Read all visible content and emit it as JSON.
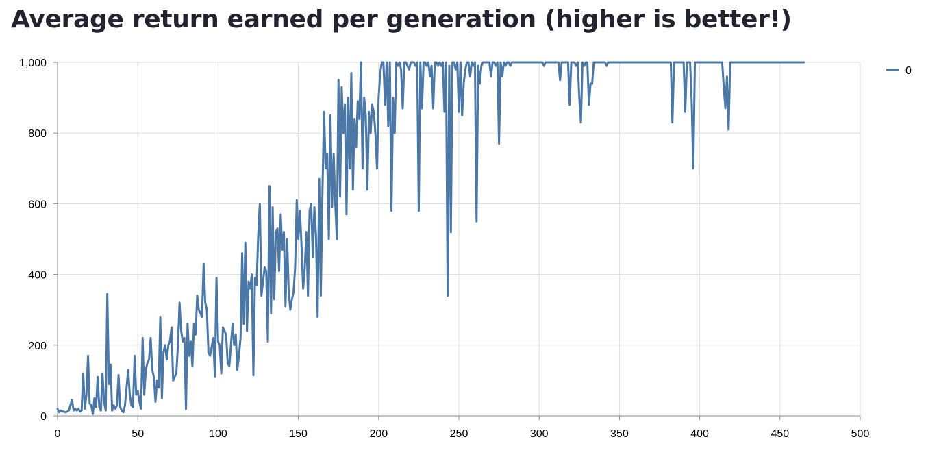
{
  "chart_data": {
    "type": "line",
    "title": "Average return earned per generation (higher is better!)",
    "xlabel": "",
    "ylabel": "",
    "xlim": [
      0,
      500
    ],
    "ylim": [
      0,
      1000
    ],
    "x_ticks": [
      0,
      50,
      100,
      150,
      200,
      250,
      300,
      350,
      400,
      450,
      500
    ],
    "x_tick_labels": [
      "0",
      "50",
      "100",
      "150",
      "200",
      "250",
      "300",
      "350",
      "400",
      "450",
      "500"
    ],
    "y_ticks": [
      0,
      200,
      400,
      600,
      800,
      1000
    ],
    "y_tick_labels": [
      "0",
      "200",
      "400",
      "600",
      "800",
      "1,000"
    ],
    "grid": true,
    "legend_placement": "top-right",
    "colors": {
      "series": "#4c78a8",
      "grid": "#dddddd",
      "axis": "#888888",
      "title": "#23232f"
    },
    "series": [
      {
        "name": "0",
        "x_start": 0,
        "x_step": 1,
        "values": [
          20,
          10,
          15,
          12,
          12,
          10,
          12,
          15,
          30,
          45,
          15,
          20,
          15,
          20,
          12,
          15,
          120,
          20,
          60,
          170,
          35,
          30,
          5,
          50,
          25,
          110,
          25,
          15,
          120,
          40,
          15,
          345,
          90,
          145,
          15,
          30,
          20,
          30,
          115,
          25,
          15,
          10,
          30,
          80,
          130,
          60,
          30,
          25,
          170,
          60,
          70,
          40,
          20,
          220,
          60,
          130,
          150,
          160,
          220,
          130,
          110,
          40,
          100,
          80,
          280,
          50,
          180,
          200,
          160,
          200,
          210,
          250,
          100,
          110,
          120,
          200,
          320,
          240,
          210,
          220,
          20,
          260,
          170,
          210,
          140,
          260,
          230,
          340,
          300,
          290,
          280,
          430,
          320,
          300,
          180,
          170,
          195,
          220,
          110,
          390,
          210,
          200,
          120,
          250,
          240,
          230,
          150,
          140,
          200,
          260,
          200,
          230,
          130,
          170,
          220,
          460,
          260,
          490,
          240,
          380,
          360,
          400,
          115,
          390,
          370,
          510,
          600,
          340,
          380,
          420,
          410,
          210,
          650,
          290,
          590,
          330,
          520,
          530,
          410,
          570,
          470,
          520,
          310,
          500,
          350,
          300,
          330,
          350,
          420,
          610,
          500,
          580,
          480,
          360,
          420,
          520,
          340,
          580,
          600,
          450,
          590,
          510,
          280,
          670,
          340,
          630,
          860,
          700,
          740,
          500,
          850,
          590,
          740,
          600,
          500,
          950,
          620,
          930,
          800,
          880,
          570,
          900,
          700,
          970,
          640,
          840,
          760,
          890,
          840,
          1000,
          700,
          900,
          850,
          640,
          860,
          800,
          880,
          860,
          800,
          700,
          900,
          970,
          1000,
          1000,
          880,
          1000,
          820,
          1000,
          580,
          900,
          800,
          1000,
          990,
          1000,
          980,
          870,
          1000,
          1000,
          990,
          980,
          1000,
          1000,
          1000,
          990,
          1000,
          580,
          1000,
          870,
          1000,
          1000,
          990,
          1000,
          960,
          990,
          870,
          1000,
          1000,
          990,
          1000,
          990,
          1000,
          860,
          1000,
          340,
          990,
          520,
          1000,
          1000,
          980,
          1000,
          860,
          1000,
          850,
          940,
          980,
          1000,
          1000,
          960,
          1000,
          990,
          1000,
          550,
          990,
          940,
          990,
          1000,
          1000,
          1000,
          1000,
          1000,
          960,
          1000,
          1000,
          990,
          1000,
          770,
          1000,
          960,
          1000,
          990,
          1000,
          1000,
          990,
          1000,
          1000,
          1000,
          1000,
          1000,
          1000,
          1000,
          1000,
          1000,
          1000,
          1000,
          1000,
          1000,
          1000,
          1000,
          1000,
          1000,
          1000,
          1000,
          1000,
          990,
          1000,
          1000,
          1000,
          1000,
          1000,
          1000,
          1000,
          1000,
          1000,
          950,
          1000,
          1000,
          1000,
          1000,
          1000,
          880,
          1000,
          1000,
          1000,
          990,
          1000,
          900,
          830,
          1000,
          990,
          1000,
          1000,
          880,
          940,
          940,
          1000,
          1000,
          1000,
          1000,
          1000,
          1000,
          1000,
          1000,
          990,
          1000,
          1000,
          1000,
          1000,
          1000,
          1000,
          1000,
          1000,
          1000,
          1000,
          1000,
          1000,
          1000,
          1000,
          1000,
          1000,
          1000,
          1000,
          1000,
          1000,
          1000,
          1000,
          1000,
          1000,
          1000,
          1000,
          1000,
          1000,
          1000,
          1000,
          1000,
          1000,
          1000,
          1000,
          1000,
          1000,
          1000,
          1000,
          1000,
          1000,
          830,
          1000,
          1000,
          1000,
          1000,
          1000,
          1000,
          1000,
          860,
          1000,
          1000,
          1000,
          890,
          700,
          1000,
          1000,
          1000,
          1000,
          1000,
          1000,
          1000,
          1000,
          1000,
          1000,
          1000,
          1000,
          1000,
          1000,
          1000,
          1000,
          1000,
          1000,
          930,
          870,
          960,
          810,
          1000,
          1000,
          1000,
          1000,
          1000,
          1000,
          1000,
          1000,
          1000,
          1000,
          1000,
          1000,
          1000,
          1000,
          1000,
          1000,
          1000,
          1000,
          1000,
          1000,
          1000,
          1000,
          1000,
          1000,
          1000,
          1000,
          1000,
          1000,
          1000,
          1000,
          1000,
          1000,
          1000,
          1000,
          1000,
          1000,
          1000,
          1000,
          1000,
          1000,
          1000,
          1000,
          1000,
          1000,
          1000,
          1000,
          1000
        ]
      }
    ]
  }
}
